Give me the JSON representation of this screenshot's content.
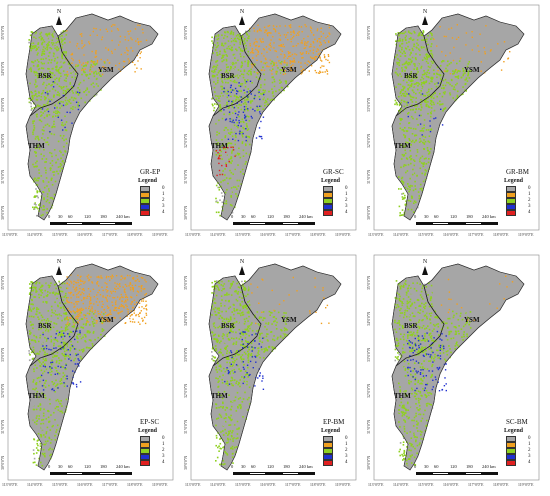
{
  "regions": {
    "bsr": "BSR",
    "ysm": "YSM",
    "thm": "THM"
  },
  "north": "N",
  "legend": {
    "title": "Legend",
    "items": [
      {
        "label": "0",
        "color": "#a6a6a6"
      },
      {
        "label": "1",
        "color": "#f0a020"
      },
      {
        "label": "2",
        "color": "#8fd020"
      },
      {
        "label": "3",
        "color": "#2030d0"
      },
      {
        "label": "4",
        "color": "#e02020"
      }
    ]
  },
  "scale_labels": [
    "0",
    "30",
    "60",
    "120",
    "180",
    "240 km"
  ],
  "lon_ticks": [
    "113°0'0\"E",
    "114°0'0\"E",
    "115°0'0\"E",
    "116°0'0\"E",
    "117°0'0\"E",
    "118°0'0\"E",
    "119°0'0\"E"
  ],
  "lat_ticks": [
    "30°0'0\"N",
    "31°0'0\"N",
    "32°0'0\"N",
    "33°0'0\"N",
    "34°0'0\"N",
    "35°0'0\"N"
  ],
  "panels": [
    {
      "title": "GR-EP"
    },
    {
      "title": "GR-SC"
    },
    {
      "title": "GR-BM"
    },
    {
      "title": "EP-SC"
    },
    {
      "title": "EP-BM"
    },
    {
      "title": "SC-BM"
    }
  ]
}
